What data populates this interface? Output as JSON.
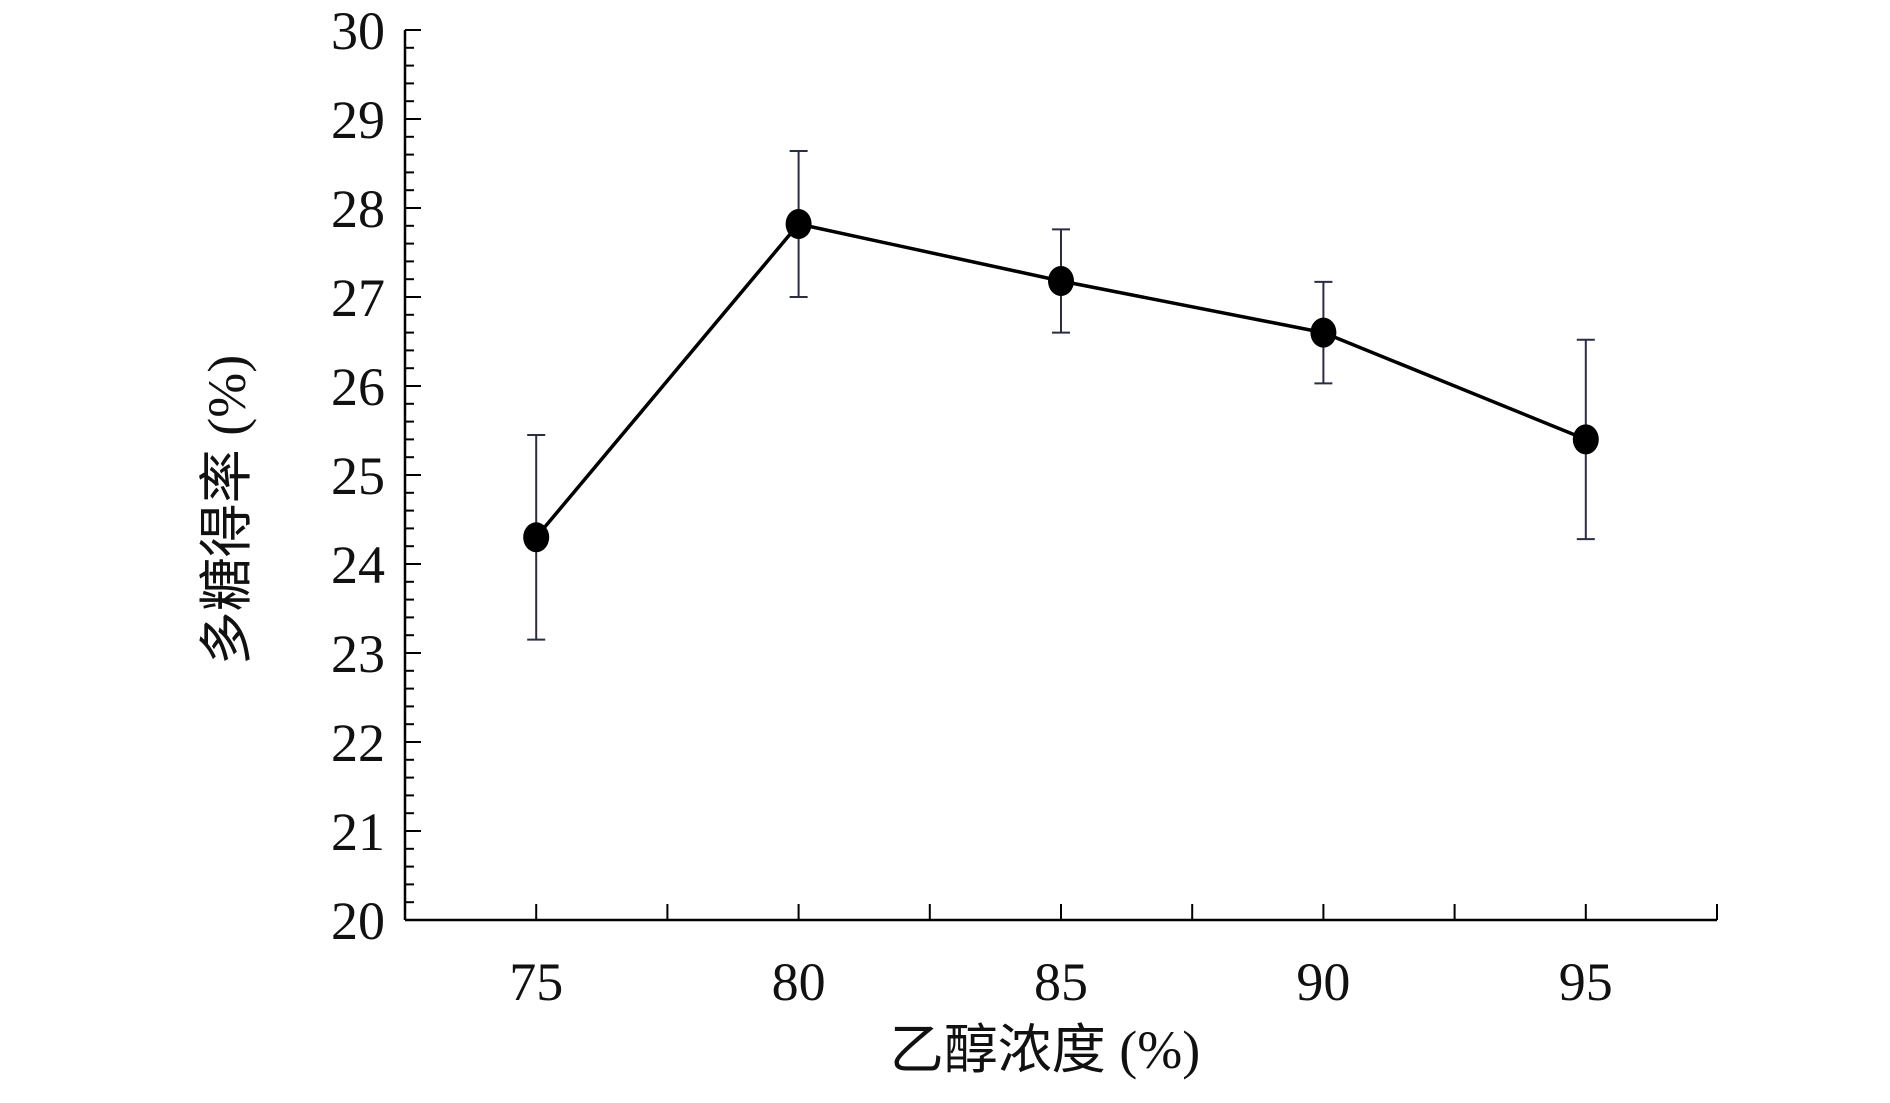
{
  "chart_data": {
    "type": "line",
    "xlabel": "乙醇浓度 (%)",
    "ylabel": "多糖得率 (%)",
    "x": [
      75,
      80,
      85,
      90,
      95
    ],
    "x_ticks": [
      "75",
      "80",
      "85",
      "90",
      "95"
    ],
    "x_minor_ticks": [
      77.5,
      82.5,
      87.5,
      92.5,
      97.5
    ],
    "xlim": [
      72.5,
      97.5
    ],
    "ylim": [
      20,
      30
    ],
    "y_ticks": [
      "20",
      "21",
      "22",
      "23",
      "24",
      "25",
      "26",
      "27",
      "28",
      "29",
      "30"
    ],
    "y_minor_step": 0.2,
    "grid": false,
    "series": [
      {
        "values": [
          24.3,
          27.82,
          27.18,
          26.6,
          25.4
        ],
        "error": [
          1.15,
          0.82,
          0.58,
          0.57,
          1.12
        ]
      }
    ]
  },
  "colors": {
    "line": "#000000",
    "marker": "#000000",
    "error_bar": "#2b2d42",
    "axis": "#000000"
  }
}
